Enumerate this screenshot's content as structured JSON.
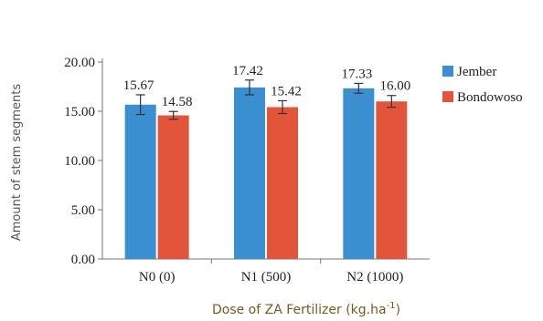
{
  "chart_data": {
    "type": "bar",
    "title": "",
    "xlabel": "Dose of ZA Fertilizer (kg.ha",
    "xlabel_sup": "-1",
    "xlabel_close": ")",
    "ylabel": "Amount of stem segments",
    "ylim": [
      0,
      20
    ],
    "yticks": [
      "0.00",
      "5.00",
      "10.00",
      "15.00",
      "20.00"
    ],
    "categories": [
      "N0 (0)",
      "N1 (500)",
      "N2 (1000)"
    ],
    "series": [
      {
        "name": "Jember",
        "color": "#3a8fd0",
        "values": [
          15.67,
          17.42,
          17.33
        ],
        "labels": [
          "15.67",
          "17.42",
          "17.33"
        ],
        "errors": [
          1.0,
          0.75,
          0.5
        ]
      },
      {
        "name": "Bondowoso",
        "color": "#e2553a",
        "values": [
          14.58,
          15.42,
          16.0
        ],
        "labels": [
          "14.58",
          "15.42",
          "16.00"
        ],
        "errors": [
          0.4,
          0.65,
          0.6
        ]
      }
    ],
    "legend": "right",
    "grid": false
  }
}
